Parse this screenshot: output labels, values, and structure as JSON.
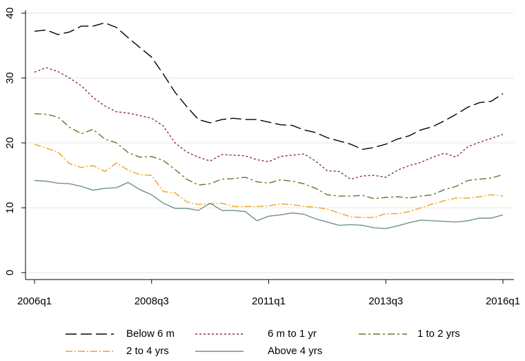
{
  "chart_data": {
    "type": "line",
    "categories": [
      "2006q1",
      null,
      null,
      null,
      null,
      null,
      null,
      null,
      null,
      null,
      "2008q3",
      null,
      null,
      null,
      null,
      null,
      null,
      null,
      null,
      null,
      "2011q1",
      null,
      null,
      null,
      null,
      null,
      null,
      null,
      null,
      null,
      "2013q3",
      null,
      null,
      null,
      null,
      null,
      null,
      null,
      null,
      null,
      "2016q1"
    ],
    "ylim": [
      0,
      40
    ],
    "yticks": [
      0,
      10,
      20,
      30,
      40
    ],
    "grid": true,
    "series": [
      {
        "name": "Below 6 m",
        "color": "#000000",
        "values": [
          37.2,
          37.4,
          36.7,
          37.1,
          38.0,
          38.0,
          38.5,
          37.8,
          36.2,
          34.7,
          33.2,
          30.6,
          27.8,
          25.6,
          23.6,
          23.1,
          23.6,
          23.8,
          23.6,
          23.6,
          23.2,
          22.8,
          22.7,
          22.0,
          21.6,
          20.8,
          20.3,
          19.8,
          19.0,
          19.3,
          19.8,
          20.6,
          21.1,
          22.0,
          22.5,
          23.4,
          24.4,
          25.5,
          26.2,
          26.4,
          27.6
        ]
      },
      {
        "name": "6 m to 1 yr",
        "color": "#8b2e3f",
        "values": [
          30.9,
          31.6,
          31.0,
          30.0,
          28.8,
          27.0,
          25.7,
          24.8,
          24.6,
          24.2,
          23.8,
          22.6,
          20.0,
          18.6,
          17.8,
          17.2,
          18.2,
          18.1,
          18.0,
          17.4,
          17.1,
          17.9,
          18.1,
          18.3,
          17.2,
          15.7,
          15.6,
          14.4,
          14.9,
          15.0,
          14.7,
          15.8,
          16.5,
          17.0,
          17.8,
          18.4,
          17.8,
          19.4,
          20.1,
          20.7,
          21.3
        ]
      },
      {
        "name": "1 to 2 yrs",
        "color": "#5a7a2a",
        "values": [
          24.5,
          24.4,
          24.0,
          22.4,
          21.4,
          22.1,
          20.6,
          20.0,
          18.5,
          17.8,
          17.9,
          17.3,
          15.9,
          14.4,
          13.5,
          13.7,
          14.4,
          14.5,
          14.7,
          14.0,
          13.8,
          14.3,
          14.1,
          13.7,
          13.0,
          12.0,
          11.8,
          11.8,
          11.9,
          11.4,
          11.6,
          11.7,
          11.5,
          11.8,
          12.0,
          12.8,
          13.3,
          14.2,
          14.4,
          14.6,
          15.1
        ]
      },
      {
        "name": "2 to 4 yrs",
        "color": "#f0a020",
        "values": [
          19.8,
          19.2,
          18.6,
          16.8,
          16.2,
          16.5,
          15.6,
          16.9,
          15.8,
          15.1,
          15.0,
          12.5,
          12.3,
          10.9,
          10.5,
          10.6,
          10.7,
          10.2,
          10.2,
          10.2,
          10.3,
          10.6,
          10.5,
          10.2,
          10.1,
          9.8,
          9.2,
          8.6,
          8.5,
          8.5,
          9.1,
          9.1,
          9.4,
          10.0,
          10.6,
          11.1,
          11.5,
          11.5,
          11.7,
          12.0,
          11.8
        ]
      },
      {
        "name": "Above 4 yrs",
        "color": "#6f8f8f",
        "values": [
          14.2,
          14.1,
          13.8,
          13.7,
          13.3,
          12.7,
          13.0,
          13.1,
          13.9,
          12.8,
          12.0,
          10.7,
          9.9,
          9.9,
          9.6,
          10.7,
          9.6,
          9.6,
          9.4,
          8.0,
          8.7,
          8.9,
          9.2,
          9.0,
          8.3,
          7.8,
          7.3,
          7.4,
          7.3,
          6.9,
          6.8,
          7.2,
          7.7,
          8.1,
          8.0,
          7.9,
          7.8,
          8.0,
          8.4,
          8.4,
          8.9
        ]
      }
    ]
  }
}
